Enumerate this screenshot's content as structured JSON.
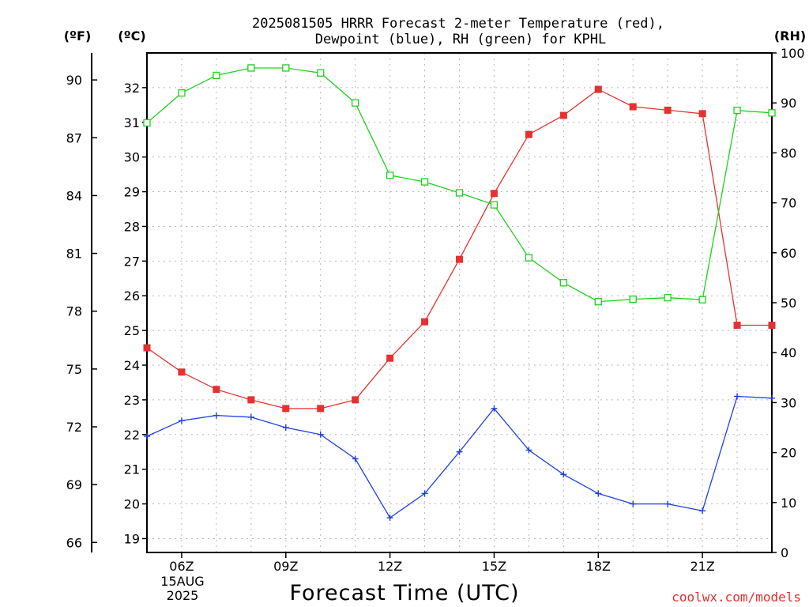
{
  "chart_data": {
    "type": "line",
    "title_line1": "2025081505 HRRR Forecast 2-meter Temperature (red),",
    "title_line2": "Dewpoint (blue), RH (green) for KPHL",
    "xlabel": "Forecast Time (UTC)",
    "credit": "coolwx.com/models",
    "date_label": [
      "15AUG",
      "2025"
    ],
    "x_hours": [
      5,
      6,
      7,
      8,
      9,
      10,
      11,
      12,
      13,
      14,
      15,
      16,
      17,
      18,
      19,
      20,
      21,
      22,
      23
    ],
    "xlim": [
      5,
      23
    ],
    "x_ticks": [
      {
        "hour": 6,
        "label": "06Z"
      },
      {
        "hour": 9,
        "label": "09Z"
      },
      {
        "hour": 12,
        "label": "12Z"
      },
      {
        "hour": 15,
        "label": "15Z"
      },
      {
        "hour": 18,
        "label": "18Z"
      },
      {
        "hour": 21,
        "label": "21Z"
      }
    ],
    "axes": {
      "celsius": {
        "unit_label": "(ºC)",
        "ylim": [
          18.6,
          33.0
        ],
        "ticks": [
          19,
          20,
          21,
          22,
          23,
          24,
          25,
          26,
          27,
          28,
          29,
          30,
          31,
          32
        ]
      },
      "fahrenheit": {
        "unit_label": "(ºF)",
        "ticks": [
          66,
          69,
          72,
          75,
          78,
          81,
          84,
          87,
          90
        ]
      },
      "rh": {
        "unit_label": "(RH)",
        "ylim": [
          0,
          100
        ],
        "ticks": [
          0,
          10,
          20,
          30,
          40,
          50,
          60,
          70,
          80,
          90,
          100
        ]
      }
    },
    "grid": true,
    "series": [
      {
        "key": "temperature",
        "axis": "celsius",
        "color": "#e83030",
        "marker": "filled-square",
        "values": [
          24.5,
          23.8,
          23.3,
          23.0,
          22.75,
          22.75,
          23.0,
          24.2,
          25.25,
          27.05,
          28.95,
          30.65,
          31.2,
          31.95,
          31.45,
          31.35,
          31.25,
          25.15,
          25.15
        ]
      },
      {
        "key": "dewpoint",
        "axis": "celsius",
        "color": "#2040e0",
        "marker": "plus",
        "values": [
          21.95,
          22.4,
          22.55,
          22.5,
          22.2,
          22.0,
          21.3,
          19.6,
          20.3,
          21.5,
          22.75,
          21.55,
          20.85,
          20.3,
          20.0,
          20.0,
          19.8,
          23.1,
          23.05
        ]
      },
      {
        "key": "rh",
        "axis": "rh",
        "color": "#20d020",
        "marker": "open-square",
        "values": [
          86.0,
          92.0,
          95.5,
          97.0,
          97.0,
          96.0,
          90.0,
          75.5,
          74.2,
          72.0,
          69.6,
          59.0,
          54.0,
          50.2,
          50.7,
          51.0,
          50.6,
          88.5,
          88.0
        ]
      }
    ]
  }
}
